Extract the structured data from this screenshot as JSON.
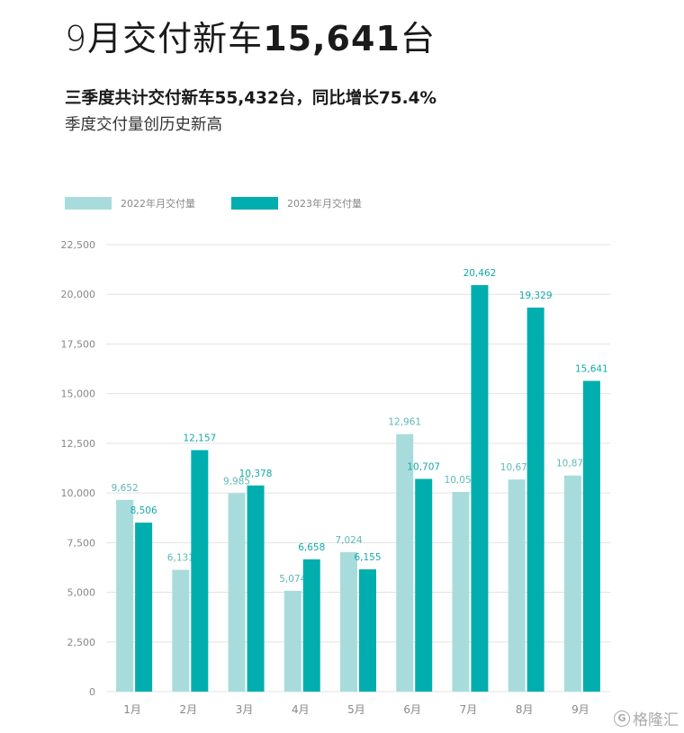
{
  "header": {
    "headline_light": "9月交付新车",
    "headline_bold": "15,641",
    "headline_tail": "台",
    "subtitle_bold": "三季度共计交付新车55,432台，同比增长75.4%",
    "subtitle_light": "季度交付量创历史新高"
  },
  "watermark": {
    "icon": "G",
    "text": "格隆汇"
  },
  "colors": {
    "series_2022": "#a8dcdc",
    "series_2023": "#00aeae",
    "grid": "#e3e3e3",
    "axis_text": "#888888"
  },
  "chart_data": {
    "type": "bar",
    "categories": [
      "1月",
      "2月",
      "3月",
      "4月",
      "5月",
      "6月",
      "7月",
      "8月",
      "9月"
    ],
    "series": [
      {
        "name": "2022年月交付量",
        "values": [
          9652,
          6131,
          9985,
          5074,
          7024,
          12961,
          10052,
          10677,
          10878
        ],
        "labels": [
          "9,652",
          "6,131",
          "9,985",
          "5,074",
          "7,024",
          "12,961",
          "10,052",
          "10,677",
          "10,878"
        ]
      },
      {
        "name": "2023年月交付量",
        "values": [
          8506,
          12157,
          10378,
          6658,
          6155,
          10707,
          20462,
          19329,
          15641
        ],
        "labels": [
          "8,506",
          "12,157",
          "10,378",
          "6,658",
          "6,155",
          "10,707",
          "20,462",
          "19,329",
          "15,641"
        ]
      }
    ],
    "ylim": [
      0,
      22500
    ],
    "yticks": [
      0,
      2500,
      5000,
      7500,
      10000,
      12500,
      15000,
      17500,
      20000,
      22500
    ],
    "ytick_labels": [
      "0",
      "2,500",
      "5,000",
      "7,500",
      "10,000",
      "12,500",
      "15,000",
      "17,500",
      "20,000",
      "22,500"
    ],
    "grid": true,
    "legend": "top-left"
  }
}
